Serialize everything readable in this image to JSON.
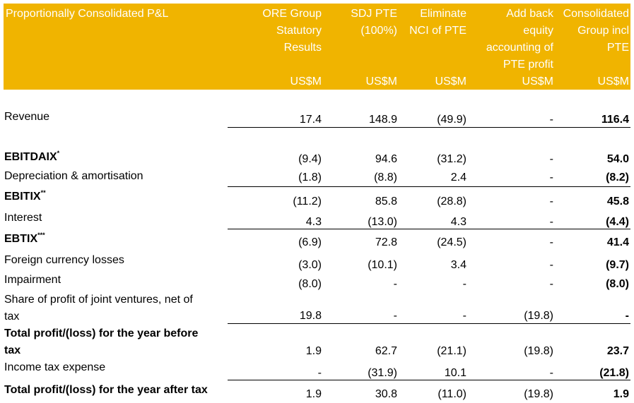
{
  "table": {
    "title": "Proportionally Consolidated P&L",
    "headers": [
      "ORE Group\nStatutory\nResults",
      "SDJ PTE\n(100%)",
      "Eliminate\nNCI of PTE",
      "Add back\nequity\naccounting of\nPTE profit",
      "Consolidated\nGroup incl\nPTE"
    ],
    "unit": "US$M",
    "rows": [
      {
        "label": "Revenue",
        "sup": "",
        "values": [
          "17.4",
          "148.9",
          "(49.9)",
          "-",
          "116.4"
        ]
      },
      {
        "label": "EBITDAIX",
        "sup": "*",
        "values": [
          "(9.4)",
          "94.6",
          "(31.2)",
          "-",
          "54.0"
        ]
      },
      {
        "label": "Depreciation & amortisation",
        "sup": "",
        "values": [
          "(1.8)",
          "(8.8)",
          "2.4",
          "-",
          "(8.2)"
        ]
      },
      {
        "label": "EBITIX",
        "sup": "**",
        "values": [
          "(11.2)",
          "85.8",
          "(28.8)",
          "-",
          "45.8"
        ]
      },
      {
        "label": "Interest",
        "sup": "",
        "values": [
          "4.3",
          "(13.0)",
          "4.3",
          "-",
          "(4.4)"
        ]
      },
      {
        "label": "EBTIX",
        "sup": "***",
        "values": [
          "(6.9)",
          "72.8",
          "(24.5)",
          "-",
          "41.4"
        ]
      },
      {
        "label": "Foreign currency losses",
        "sup": "",
        "values": [
          "(3.0)",
          "(10.1)",
          "3.4",
          "-",
          "(9.7)"
        ]
      },
      {
        "label": "Impairment",
        "sup": "",
        "values": [
          "(8.0)",
          "-",
          "-",
          "-",
          "(8.0)"
        ]
      },
      {
        "label": "Share of profit of joint ventures, net of\ntax",
        "sup": "",
        "values": [
          "19.8",
          "-",
          "-",
          "(19.8)",
          "-"
        ]
      },
      {
        "label": "Total profit/(loss) for the year before\ntax",
        "sup": "",
        "values": [
          "1.9",
          "62.7",
          "(21.1)",
          "(19.8)",
          "23.7"
        ]
      },
      {
        "label": "Income tax expense",
        "sup": "",
        "values": [
          "-",
          "(31.9)",
          "10.1",
          "-",
          "(21.8)"
        ]
      },
      {
        "label": "Total profit/(loss) for the year after tax",
        "sup": "",
        "values": [
          "1.9",
          "30.8",
          "(11.0)",
          "(19.8)",
          "1.9"
        ]
      }
    ]
  }
}
